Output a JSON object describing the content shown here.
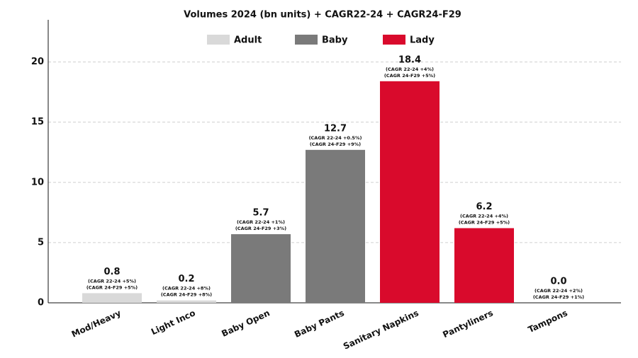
{
  "chart_data": {
    "type": "bar",
    "title": "Volumes 2024 (bn units) + CAGR22-24 + CAGR24-F29",
    "categories": [
      "Mod/Heavy",
      "Light Inco",
      "Baby Open",
      "Baby Pants",
      "Sanitary Napkins",
      "Pantyliners",
      "Tampons"
    ],
    "series": [
      {
        "name": "Adult",
        "color": "#d9d9d9",
        "values": [
          0.8,
          0.2,
          null,
          null,
          null,
          null,
          null
        ],
        "value_labels": [
          "0.8",
          "0.2",
          null,
          null,
          null,
          null,
          null
        ]
      },
      {
        "name": "Baby",
        "color": "#7a7a7a",
        "values": [
          null,
          null,
          5.7,
          12.7,
          null,
          null,
          null
        ],
        "value_labels": [
          null,
          null,
          "5.7",
          "12.7",
          null,
          null,
          null
        ]
      },
      {
        "name": "Lady",
        "color": "#d90a2c",
        "values": [
          null,
          null,
          null,
          null,
          18.4,
          6.2,
          0.0
        ],
        "value_labels": [
          null,
          null,
          null,
          null,
          "18.4",
          "6.2",
          "0.0"
        ]
      }
    ],
    "annotations": [
      [
        "(CAGR 22-24 +5%)",
        "(CAGR 24-F29 +5%)"
      ],
      [
        "(CAGR 22-24 +8%)",
        "(CAGR 24-F29 +8%)"
      ],
      [
        "(CAGR 22-24 +1%)",
        "(CAGR 24-F29 +3%)"
      ],
      [
        "(CAGR 22-24 +0.5%)",
        "(CAGR 24-F29 +9%)"
      ],
      [
        "(CAGR 22-24 +4%)",
        "(CAGR 24-F29 +5%)"
      ],
      [
        "(CAGR 22-24 +4%)",
        "(CAGR 24-F29 +5%)"
      ],
      [
        "(CAGR 22-24 +2%)",
        "(CAGR 24-F29 +1%)"
      ]
    ],
    "ylim": [
      0,
      23.5
    ],
    "yticks": [
      0,
      5,
      10,
      15,
      20
    ],
    "grid": true,
    "legend": "top"
  }
}
